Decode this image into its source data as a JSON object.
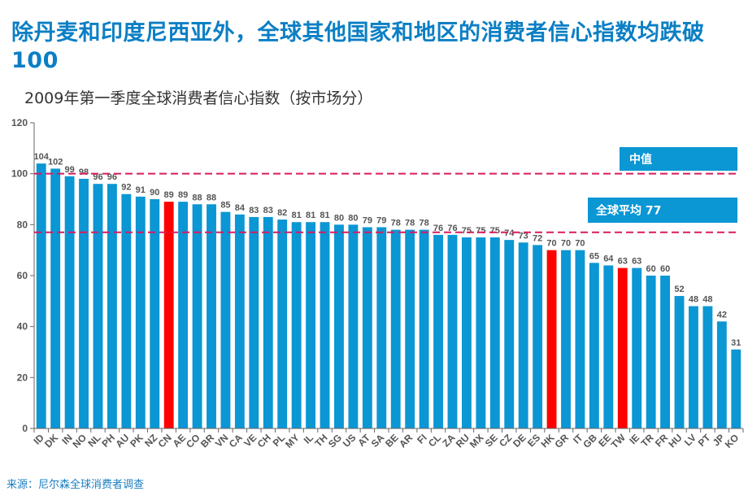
{
  "title": "除丹麦和印度尼西亚外，全球其他国家和地区的消费者信心指数均跌破100",
  "footer": {
    "source": "来源：尼尔森全球消费者调查"
  },
  "chart_data": {
    "type": "bar",
    "title": "2009年第一季度全球消费者信心指数（按市场分）",
    "xlabel": "",
    "ylabel": "",
    "ylim": [
      0,
      120
    ],
    "yticks": [
      0,
      20,
      40,
      60,
      80,
      100,
      120
    ],
    "grid": false,
    "categories": [
      "ID",
      "DK",
      "IN",
      "NO",
      "NL",
      "PH",
      "AU",
      "PK",
      "NZ",
      "CN",
      "AE",
      "CO",
      "BR",
      "VN",
      "CA",
      "VE",
      "CH",
      "PL",
      "MY",
      "IL",
      "TH",
      "SG",
      "US",
      "AT",
      "SA",
      "BE",
      "AR",
      "FI",
      "CL",
      "ZA",
      "RU",
      "MX",
      "SE",
      "CZ",
      "DE",
      "ES",
      "HK",
      "GR",
      "IT",
      "GB",
      "EE",
      "TW",
      "IE",
      "TR",
      "FR",
      "HU",
      "LV",
      "PT",
      "JP",
      "KO"
    ],
    "values": [
      104,
      102,
      99,
      98,
      96,
      96,
      92,
      91,
      90,
      89,
      89,
      88,
      88,
      85,
      84,
      83,
      83,
      82,
      81,
      81,
      81,
      80,
      80,
      79,
      79,
      78,
      78,
      78,
      76,
      76,
      75,
      75,
      75,
      74,
      73,
      72,
      70,
      70,
      70,
      65,
      64,
      63,
      63,
      60,
      60,
      52,
      48,
      48,
      42,
      31
    ],
    "highlighted": [
      "CN",
      "HK",
      "TW"
    ],
    "colors": {
      "bar": "#0b96d4",
      "highlight": "#ff0000",
      "refline": "#d81b60",
      "label_box": "#0b96d4"
    },
    "reference_lines": [
      {
        "name": "median",
        "label": "中值",
        "value": 100
      },
      {
        "name": "global-average",
        "label": "全球平均 77",
        "value": 77
      }
    ]
  }
}
